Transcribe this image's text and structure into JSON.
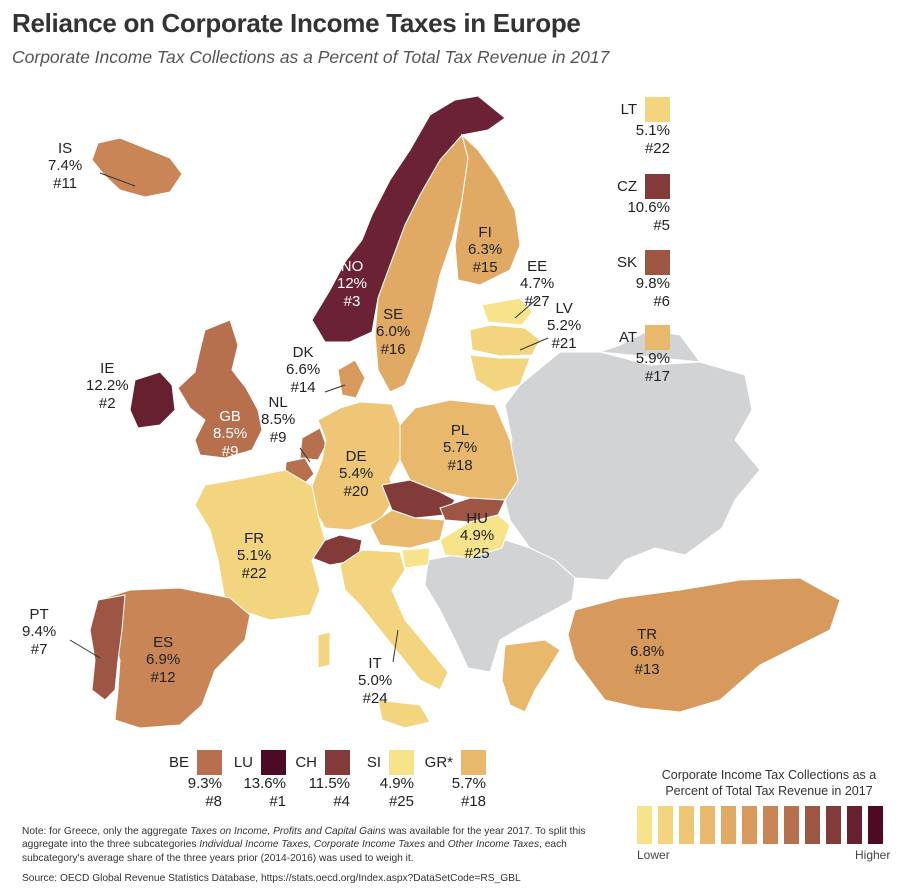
{
  "title": "Reliance on Corporate Income Taxes in Europe",
  "subtitle": "Corporate Income Tax Collections as a Percent of Total Tax Revenue in 2017",
  "colors": {
    "no_data": "#d2d3d5",
    "scale": [
      "#f7e48a",
      "#f3d580",
      "#eec676",
      "#e8b86d",
      "#e1aa64",
      "#d79a5c",
      "#c98555",
      "#b6704d",
      "#9e5644",
      "#833b3a",
      "#66202f",
      "#4d0a24"
    ]
  },
  "countries": {
    "IS": {
      "code": "IS",
      "pct": "7.4%",
      "rank": "#11",
      "color": "#c98555"
    },
    "NO": {
      "code": "NO",
      "pct": "12%",
      "rank": "#3",
      "color": "#6b2234"
    },
    "SE": {
      "code": "SE",
      "pct": "6.0%",
      "rank": "#16",
      "color": "#e1aa64"
    },
    "FI": {
      "code": "FI",
      "pct": "6.3%",
      "rank": "#15",
      "color": "#e1aa64"
    },
    "EE": {
      "code": "EE",
      "pct": "4.7%",
      "rank": "#27",
      "color": "#f7e48a"
    },
    "LV": {
      "code": "LV",
      "pct": "5.2%",
      "rank": "#21",
      "color": "#f3d580"
    },
    "IE": {
      "code": "IE",
      "pct": "12.2%",
      "rank": "#2",
      "color": "#66202f"
    },
    "GB": {
      "code": "GB",
      "pct": "8.5%",
      "rank": "#9",
      "color": "#b6704d"
    },
    "DK": {
      "code": "DK",
      "pct": "6.6%",
      "rank": "#14",
      "color": "#d79a5c"
    },
    "NL": {
      "code": "NL",
      "pct": "8.5%",
      "rank": "#9",
      "color": "#b6704d"
    },
    "DE": {
      "code": "DE",
      "pct": "5.4%",
      "rank": "#20",
      "color": "#eec676"
    },
    "PL": {
      "code": "PL",
      "pct": "5.7%",
      "rank": "#18",
      "color": "#e8b86d"
    },
    "FR": {
      "code": "FR",
      "pct": "5.1%",
      "rank": "#22",
      "color": "#f3d580"
    },
    "HU": {
      "code": "HU",
      "pct": "4.9%",
      "rank": "#25",
      "color": "#f7e48a"
    },
    "PT": {
      "code": "PT",
      "pct": "9.4%",
      "rank": "#7",
      "color": "#9e5644"
    },
    "ES": {
      "code": "ES",
      "pct": "6.9%",
      "rank": "#12",
      "color": "#c98555"
    },
    "IT": {
      "code": "IT",
      "pct": "5.0%",
      "rank": "#24",
      "color": "#f3d580"
    },
    "TR": {
      "code": "TR",
      "pct": "6.8%",
      "rank": "#13",
      "color": "#d79a5c"
    },
    "LT": {
      "code": "LT",
      "pct": "5.1%",
      "rank": "#22",
      "color": "#f3d580"
    },
    "CZ": {
      "code": "CZ",
      "pct": "10.6%",
      "rank": "#5",
      "color": "#833b3a"
    },
    "SK": {
      "code": "SK",
      "pct": "9.8%",
      "rank": "#6",
      "color": "#9e5644"
    },
    "AT": {
      "code": "AT",
      "pct": "5.9%",
      "rank": "#17",
      "color": "#e8b86d"
    },
    "BE": {
      "code": "BE",
      "pct": "9.3%",
      "rank": "#8",
      "color": "#b6704d"
    },
    "LU": {
      "code": "LU",
      "pct": "13.6%",
      "rank": "#1",
      "color": "#4d0a24"
    },
    "CH": {
      "code": "CH",
      "pct": "11.5%",
      "rank": "#4",
      "color": "#833b3a"
    },
    "SI": {
      "code": "SI",
      "pct": "4.9%",
      "rank": "#25",
      "color": "#f7e48a"
    },
    "GR": {
      "code": "GR*",
      "pct": "5.7%",
      "rank": "#18",
      "color": "#e8b86d"
    }
  },
  "legend": {
    "title_line1": "Corporate Income Tax Collections as a",
    "title_line2": "Percent of Total Tax Revenue in 2017",
    "low": "Lower",
    "high": "Higher"
  },
  "note": {
    "t1": "Note: for Greece, only the aggregate ",
    "t2": "Taxes on Income, Profits and Capital Gains",
    "t3": " was available for the year 2017. To split this aggregate into the three subcategories ",
    "t4": "Individual Income Taxes, Corporate Income Taxes",
    "t5": " and ",
    "t6": "Other Income Taxes",
    "t7": ", each subcategory's average share of the three years prior (2014-2016) was used to weigh it.",
    "source": "Source:  OECD Global Revenue Statistics Database, https://stats.oecd.org/Index.aspx?DataSetCode=RS_GBL"
  }
}
